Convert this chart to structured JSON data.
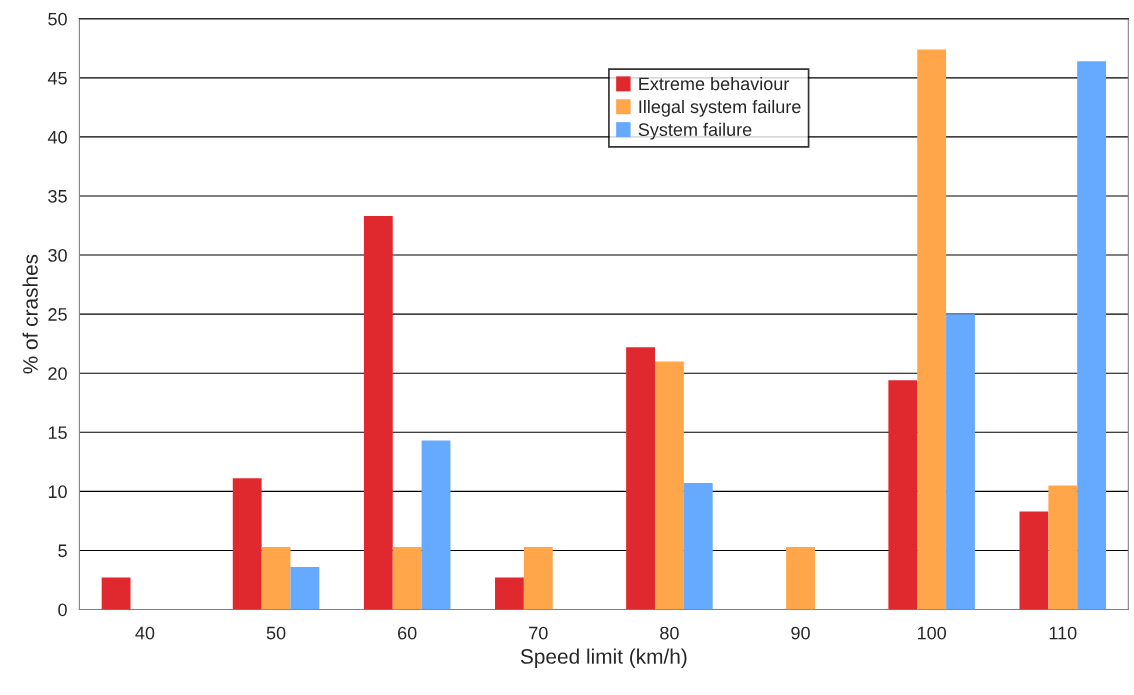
{
  "chart_data": {
    "type": "bar",
    "xlabel": "Speed limit (km/h)",
    "ylabel": "% of crashes",
    "categories": [
      "40",
      "50",
      "60",
      "70",
      "80",
      "90",
      "100",
      "110"
    ],
    "series": [
      {
        "name": "Extreme behaviour",
        "color": "#e0292f",
        "values": [
          2.7,
          11.1,
          33.3,
          2.7,
          22.2,
          0,
          19.4,
          8.3
        ]
      },
      {
        "name": "Illegal system failure",
        "color": "#ffa64a",
        "values": [
          0,
          5.3,
          5.3,
          5.3,
          21.0,
          5.3,
          47.4,
          10.5
        ]
      },
      {
        "name": "System failure",
        "color": "#66aaff",
        "values": [
          0,
          3.6,
          14.3,
          0,
          10.7,
          0,
          25.0,
          46.4
        ]
      }
    ],
    "ylim": [
      0,
      50
    ],
    "yticks": [
      0,
      5,
      10,
      15,
      20,
      25,
      30,
      35,
      40,
      45,
      50
    ],
    "grid": "y",
    "legend": "top"
  }
}
